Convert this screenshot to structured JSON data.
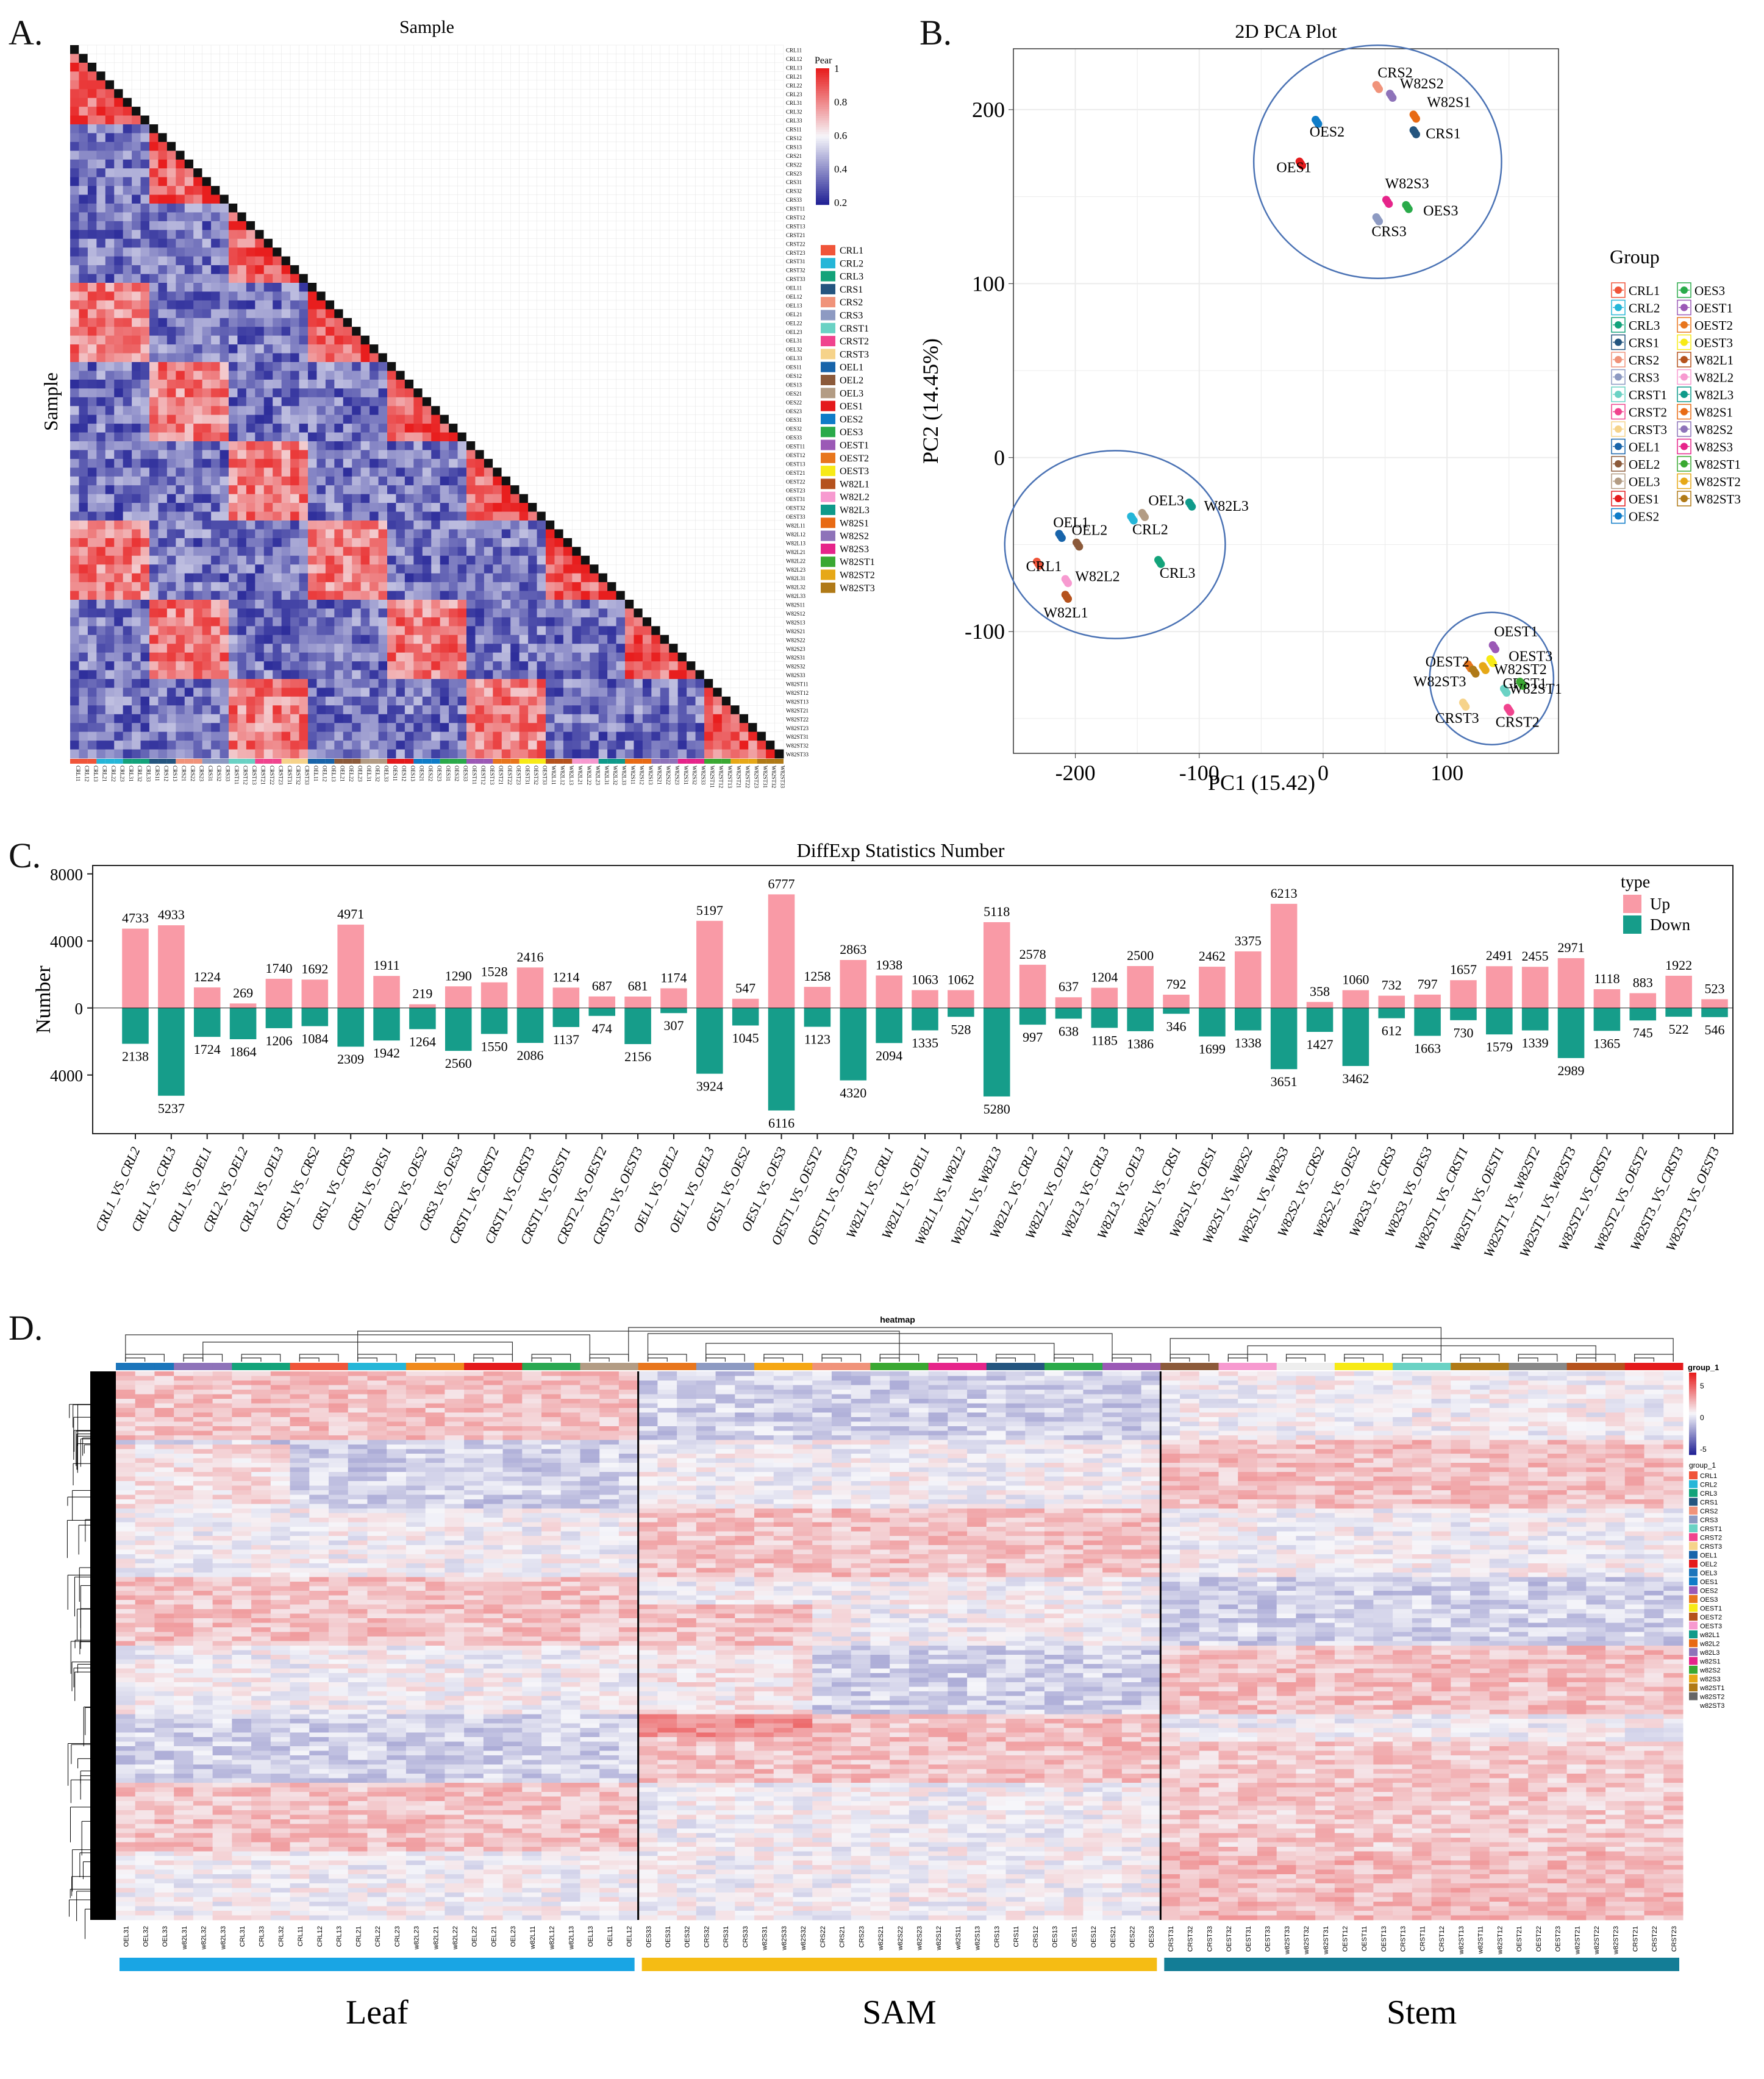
{
  "panels": {
    "a_label": "A.",
    "b_label": "B.",
    "c_label": "C.",
    "d_label": "D."
  },
  "chart_data": [
    {
      "type": "heatmap",
      "panel": "A",
      "title": "Sample",
      "ylabel": "Sample",
      "legend_title": "Pear",
      "colorbar_ticks": [
        "1",
        "0.8",
        "0.6",
        "0.4",
        "0.2"
      ],
      "groups": [
        "CRL1",
        "CRL2",
        "CRL3",
        "CRS1",
        "CRS2",
        "CRS3",
        "CRST1",
        "CRST2",
        "CRST3",
        "OEL1",
        "OEL2",
        "OEL3",
        "OES1",
        "OES2",
        "OES3",
        "OEST1",
        "OEST2",
        "OEST3",
        "W82L1",
        "W82L2",
        "W82L3",
        "W82S1",
        "W82S2",
        "W82S3",
        "W82ST1",
        "W82ST2",
        "W82ST3"
      ],
      "group_colors": [
        "#f0553a",
        "#25b6d8",
        "#13a37a",
        "#24557f",
        "#f0937a",
        "#8d9ac2",
        "#6ad2c4",
        "#f0448e",
        "#f6d38a",
        "#1864aa",
        "#8c5a3a",
        "#b39c84",
        "#e41a1c",
        "#0f7cc8",
        "#2aaa4a",
        "#9b59b6",
        "#e8761d",
        "#f7ea16",
        "#b5521d",
        "#f79ad0",
        "#0f9a8a",
        "#e86a14",
        "#8e73b9",
        "#e6248a",
        "#3aa832",
        "#e6a817",
        "#b07a17"
      ]
    },
    {
      "type": "scatter",
      "panel": "B",
      "title": "2D PCA Plot",
      "xlabel": "PC1 (15.42)",
      "ylabel": "PC2 (14.45%)",
      "xlim": [
        -250,
        190
      ],
      "ylim": [
        -170,
        235
      ],
      "xticks": [
        -200,
        -100,
        0,
        100
      ],
      "yticks": [
        -100,
        0,
        100,
        200
      ],
      "legend_title": "Group",
      "groups_col1": [
        "CRL1",
        "CRL2",
        "CRL3",
        "CRS1",
        "CRS2",
        "CRS3",
        "CRST1",
        "CRST2",
        "CRST3",
        "OEL1",
        "OEL2",
        "OEL3",
        "OES1",
        "OES2"
      ],
      "groups_col2": [
        "OES3",
        "OEST1",
        "OEST2",
        "OEST3",
        "W82L1",
        "W82L2",
        "W82L3",
        "W82S1",
        "W82S2",
        "W82S3",
        "W82ST1",
        "W82ST2",
        "W82ST3"
      ],
      "points": [
        {
          "name": "CRL1",
          "x": -230,
          "y": -61,
          "color": "#f0553a",
          "label": "CRL1"
        },
        {
          "name": "CRL2",
          "x": -154,
          "y": -35,
          "color": "#25b6d8",
          "label": "CRL2"
        },
        {
          "name": "CRL3",
          "x": -132,
          "y": -60,
          "color": "#13a37a",
          "label": "CRL3"
        },
        {
          "name": "CRS1",
          "x": 74,
          "y": 187,
          "color": "#24557f",
          "label": "CRS1"
        },
        {
          "name": "CRS2",
          "x": 44,
          "y": 213,
          "color": "#f0937a",
          "label": "CRS2"
        },
        {
          "name": "CRS3",
          "x": 44,
          "y": 137,
          "color": "#8d9ac2",
          "label": "CRS3"
        },
        {
          "name": "CRST1",
          "x": 147,
          "y": -134,
          "color": "#6ad2c4",
          "label": "CRST1"
        },
        {
          "name": "CRST2",
          "x": 150,
          "y": -145,
          "color": "#f0448e",
          "label": "CRST2"
        },
        {
          "name": "CRST3",
          "x": 114,
          "y": -142,
          "color": "#f6d38a",
          "label": "CRST3"
        },
        {
          "name": "OEL1",
          "x": -212,
          "y": -45,
          "color": "#1864aa",
          "label": "OEL1"
        },
        {
          "name": "OEL2",
          "x": -198,
          "y": -50,
          "color": "#8c5a3a",
          "label": "OEL2"
        },
        {
          "name": "OEL3",
          "x": -145,
          "y": -33,
          "color": "#b39c84",
          "label": "OEL3"
        },
        {
          "name": "OES1",
          "x": -18,
          "y": 169,
          "color": "#e41a1c",
          "label": "OES1"
        },
        {
          "name": "OES2",
          "x": -5,
          "y": 193,
          "color": "#0f7cc8",
          "label": "OES2"
        },
        {
          "name": "OES3",
          "x": 68,
          "y": 144,
          "color": "#2aaa4a",
          "label": "OES3"
        },
        {
          "name": "OEST1",
          "x": 138,
          "y": -109,
          "color": "#9b59b6",
          "label": "OEST1"
        },
        {
          "name": "OEST2",
          "x": 118,
          "y": -120,
          "color": "#e8761d",
          "label": "OEST2"
        },
        {
          "name": "OEST3",
          "x": 136,
          "y": -117,
          "color": "#f7ea16",
          "label": "OEST3"
        },
        {
          "name": "W82L1",
          "x": -207,
          "y": -80,
          "color": "#b5521d",
          "label": "W82L1"
        },
        {
          "name": "W82L2",
          "x": -207,
          "y": -71,
          "color": "#f79ad0",
          "label": "W82L2"
        },
        {
          "name": "W82L3",
          "x": -107,
          "y": -27,
          "color": "#0f9a8a",
          "label": "W82L3"
        },
        {
          "name": "W82S1",
          "x": 74,
          "y": 196,
          "color": "#e86a14",
          "label": "W82S1"
        },
        {
          "name": "W82S2",
          "x": 55,
          "y": 208,
          "color": "#8e73b9",
          "label": "W82S2"
        },
        {
          "name": "W82S3",
          "x": 52,
          "y": 147,
          "color": "#e6248a",
          "label": "W82S3"
        },
        {
          "name": "W82ST1",
          "x": 160,
          "y": -130,
          "color": "#3aa832",
          "label": "W82ST1"
        },
        {
          "name": "W82ST2",
          "x": 130,
          "y": -121,
          "color": "#e6a817",
          "label": "W82ST2"
        },
        {
          "name": "W82ST3",
          "x": 122,
          "y": -123,
          "color": "#b07a17",
          "label": "W82ST3"
        }
      ]
    },
    {
      "type": "bar",
      "panel": "C",
      "title": "DiffExp Statistics Number",
      "ylabel": "Number",
      "ylim": [
        -7500,
        8500
      ],
      "ytick_labels": [
        "8000",
        "4000",
        "0",
        "4000"
      ],
      "ytick_values": [
        8000,
        4000,
        0,
        -4000
      ],
      "legend_title": "type",
      "colors": {
        "Up": "#f99aa6",
        "Down": "#169d8a"
      },
      "categories": [
        "CRL1_VS_CRL2",
        "CRL1_VS_CRL3",
        "CRL1_VS_OEL1",
        "CRL2_VS_OEL2",
        "CRL3_VS_OEL3",
        "CRS1_VS_CRS2",
        "CRS1_VS_CRS3",
        "CRS1_VS_OES1",
        "CRS2_VS_OES2",
        "CRS3_VS_OES3",
        "CRST1_VS_CRST2",
        "CRST1_VS_CRST3",
        "CRST1_VS_OEST1",
        "CRST2_VS_OEST2",
        "CRST3_VS_OEST3",
        "OEL1_VS_OEL2",
        "OEL1_VS_OEL3",
        "OES1_VS_OES2",
        "OES1_VS_OES3",
        "OEST1_VS_OEST2",
        "OEST1_VS_OEST3",
        "W82L1_VS_CRL1",
        "W82L1_VS_OEL1",
        "W82L1_VS_W82L2",
        "W82L1_VS_W82L3",
        "W82L2_VS_CRL2",
        "W82L2_VS_OEL2",
        "W82L3_VS_CRL3",
        "W82L3_VS_OEL3",
        "W82S1_VS_CRS1",
        "W82S1_VS_OES1",
        "W82S1_VS_W82S2",
        "W82S1_VS_W82S3",
        "W82S2_VS_CRS2",
        "W82S2_VS_OES2",
        "W82S3_VS_CRS3",
        "W82S3_VS_OES3",
        "W82ST1_VS_CRST1",
        "W82ST1_VS_OEST1",
        "W82ST1_VS_W82ST2",
        "W82ST1_VS_W82ST3",
        "W82ST2_VS_CRST2",
        "W82ST2_VS_OEST2",
        "W82ST3_VS_CRST3",
        "W82ST3_VS_OEST3"
      ],
      "series": [
        {
          "name": "Up",
          "values": [
            4733,
            4933,
            1224,
            269,
            1740,
            1692,
            4971,
            1911,
            219,
            1290,
            1528,
            2416,
            1214,
            687,
            681,
            1174,
            5197,
            547,
            6777,
            1258,
            2863,
            1938,
            1063,
            1062,
            5118,
            2578,
            637,
            1204,
            2500,
            792,
            2462,
            3375,
            6213,
            358,
            1060,
            732,
            797,
            1657,
            2491,
            2455,
            2971,
            1118,
            883,
            1922,
            523
          ]
        },
        {
          "name": "Down",
          "values": [
            2138,
            5237,
            1724,
            1864,
            1206,
            1084,
            2309,
            1942,
            1264,
            2560,
            1550,
            2086,
            1137,
            474,
            2156,
            307,
            3924,
            1045,
            6116,
            1123,
            4320,
            2094,
            1335,
            528,
            5280,
            997,
            638,
            1185,
            1386,
            346,
            1699,
            1338,
            3651,
            1427,
            3462,
            612,
            1663,
            730,
            1579,
            1339,
            2989,
            1365,
            745,
            522,
            546
          ]
        }
      ]
    },
    {
      "type": "heatmap",
      "panel": "D",
      "title": "heatmap",
      "legend_title": "group_1",
      "legend_subtitle": "group_1",
      "colorbar_ticks": [
        "5",
        "0",
        "-5"
      ],
      "legend_groups": [
        "CRL1",
        "CRL2",
        "CRL3",
        "CRS1",
        "CRS2",
        "CRS3",
        "CRST1",
        "CRST2",
        "CRST3",
        "OEL1",
        "OEL2",
        "OEL3",
        "OES1",
        "OES2",
        "OES3",
        "OEST1",
        "OEST2",
        "OEST3",
        "w82L1",
        "w82L2",
        "w82L3",
        "w82S1",
        "w82S2",
        "w82S3",
        "w82ST1",
        "w82ST2",
        "w82ST3"
      ],
      "columns": [
        "OEL31",
        "OEL32",
        "OEL33",
        "w82L31",
        "w82L32",
        "w82L33",
        "CRL31",
        "CRL33",
        "CRL32",
        "CRL11",
        "CRL12",
        "CRL13",
        "CRL21",
        "CRL22",
        "CRL23",
        "w82L23",
        "w82L21",
        "w82L22",
        "OEL22",
        "OEL21",
        "OEL23",
        "w82L11",
        "w82L12",
        "w82L13",
        "OEL13",
        "OEL11",
        "OEL12",
        "OES33",
        "OES31",
        "OES32",
        "CRS32",
        "CRS31",
        "CRS33",
        "w82S31",
        "w82S33",
        "w82S32",
        "CRS22",
        "CRS21",
        "CRS23",
        "w82S21",
        "w82S22",
        "w82S23",
        "w82S12",
        "w82S11",
        "w82S13",
        "CRS13",
        "CRS11",
        "CRS12",
        "OES13",
        "OES11",
        "OES12",
        "OES21",
        "OES22",
        "OES23",
        "CRST31",
        "CRST32",
        "CRST33",
        "OEST32",
        "OEST31",
        "OEST33",
        "w82ST33",
        "w82ST32",
        "w82ST31",
        "OEST12",
        "OEST11",
        "OEST13",
        "CRST13",
        "CRST11",
        "CRST12",
        "w82ST13",
        "w82ST11",
        "w82ST12",
        "OEST21",
        "OEST22",
        "OEST23",
        "w82ST21",
        "w82ST22",
        "w82ST23",
        "CRST21",
        "CRST22",
        "CRST23"
      ],
      "tissues": [
        {
          "name": "Leaf",
          "color": "#19a5e4"
        },
        {
          "name": "SAM",
          "color": "#f5bc14"
        },
        {
          "name": "Stem",
          "color": "#137d96"
        }
      ]
    }
  ]
}
